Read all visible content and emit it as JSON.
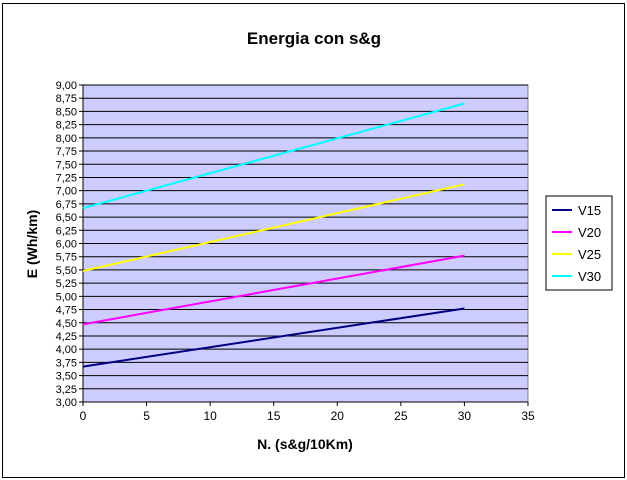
{
  "chart_data": {
    "type": "line",
    "title": "Energia con s&g",
    "xlabel": "N. (s&g/10Km)",
    "ylabel": "E (Wh/km)",
    "xlim": [
      0,
      35
    ],
    "ylim": [
      3.0,
      9.0
    ],
    "xticks": [
      0,
      5,
      10,
      15,
      20,
      25,
      30,
      35
    ],
    "xtick_labels": [
      "0",
      "5",
      "10",
      "15",
      "20",
      "25",
      "30",
      "35"
    ],
    "yticks": [
      3.0,
      3.25,
      3.5,
      3.75,
      4.0,
      4.25,
      4.5,
      4.75,
      5.0,
      5.25,
      5.5,
      5.75,
      6.0,
      6.25,
      6.5,
      6.75,
      7.0,
      7.25,
      7.5,
      7.75,
      8.0,
      8.25,
      8.5,
      8.75,
      9.0
    ],
    "ytick_labels": [
      "3,00",
      "3,25",
      "3,50",
      "3,75",
      "4,00",
      "4,25",
      "4,50",
      "4,75",
      "5,00",
      "5,25",
      "5,50",
      "5,75",
      "6,00",
      "6,25",
      "6,50",
      "6,75",
      "7,00",
      "7,25",
      "7,50",
      "7,75",
      "8,00",
      "8,25",
      "8,50",
      "8,75",
      "9,00"
    ],
    "grid": "horizontal",
    "plot_background": "#ccccff",
    "legend_position": "right",
    "x": [
      0,
      30
    ],
    "series": [
      {
        "name": "V15",
        "color": "#000080",
        "values": [
          3.67,
          4.77
        ]
      },
      {
        "name": "V20",
        "color": "#ff00ff",
        "values": [
          4.47,
          5.77
        ]
      },
      {
        "name": "V25",
        "color": "#ffff00",
        "values": [
          5.48,
          7.12
        ]
      },
      {
        "name": "V30",
        "color": "#00ffff",
        "values": [
          6.67,
          8.65
        ]
      }
    ]
  }
}
